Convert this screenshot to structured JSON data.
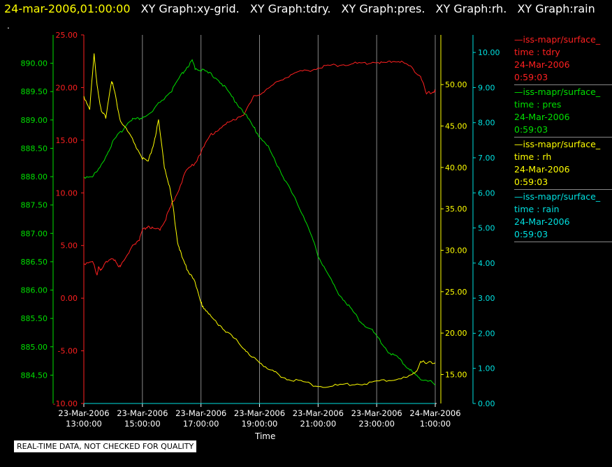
{
  "header": {
    "timestamp": "24-mar-2006,01:00:00",
    "graphs": [
      "XY Graph:xy-grid.",
      "XY Graph:tdry.",
      "XY Graph:pres.",
      "XY Graph:rh.",
      "XY Graph:rain"
    ],
    "dot": "."
  },
  "footer": {
    "disclaimer": "REAL-TIME DATA, NOT CHECKED FOR QUALITY"
  },
  "legend": [
    {
      "line1": "—iss-mapr/surface_",
      "line2": "time : tdry",
      "line3": "24-Mar-2006",
      "line4": "0:59:03",
      "color": "#ff2020"
    },
    {
      "line1": "—iss-mapr/surface_",
      "line2": "time : pres",
      "line3": "24-Mar-2006",
      "line4": "0:59:03",
      "color": "#00e000"
    },
    {
      "line1": "—iss-mapr/surface_",
      "line2": "time : rh",
      "line3": "24-Mar-2006",
      "line4": "0:59:03",
      "color": "#ffff00"
    },
    {
      "line1": "—iss-mapr/surface_",
      "line2": "time : rain",
      "line3": "24-Mar-2006",
      "line4": "0:59:03",
      "color": "#00e0e0"
    }
  ],
  "chart_data": {
    "type": "line",
    "xlabel": "Time",
    "x_ticks": [
      {
        "h": 0,
        "date": "23-Mar-2006",
        "time": "13:00:00"
      },
      {
        "h": 2,
        "date": "23-Mar-2006",
        "time": "15:00:00"
      },
      {
        "h": 4,
        "date": "23-Mar-2006",
        "time": "17:00:00"
      },
      {
        "h": 6,
        "date": "23-Mar-2006",
        "time": "19:00:00"
      },
      {
        "h": 8,
        "date": "23-Mar-2006",
        "time": "21:00:00"
      },
      {
        "h": 10,
        "date": "23-Mar-2006",
        "time": "23:00:00"
      },
      {
        "h": 12,
        "date": "24-Mar-2006",
        "time": "1:00:00"
      }
    ],
    "axes": {
      "pres": {
        "color": "#00e000",
        "range": [
          884.0,
          890.5
        ],
        "ticks": [
          "884.50",
          "885.00",
          "885.50",
          "886.00",
          "886.50",
          "887.00",
          "887.50",
          "888.00",
          "888.50",
          "889.00",
          "889.50",
          "890.00"
        ]
      },
      "tdry": {
        "color": "#ff2020",
        "range": [
          -10.0,
          25.0
        ],
        "ticks": [
          "-10.00",
          "-5.00",
          "0.00",
          "5.00",
          "10.00",
          "15.00",
          "20.00",
          "25.00"
        ]
      },
      "rh": {
        "color": "#ffff00",
        "range": [
          11.5,
          56.0
        ],
        "ticks": [
          "15.00",
          "20.00",
          "25.00",
          "30.00",
          "35.00",
          "40.00",
          "45.00",
          "50.00"
        ]
      },
      "rain": {
        "color": "#00e0e0",
        "range": [
          0.0,
          10.5
        ],
        "ticks": [
          "0.00",
          "1.00",
          "2.00",
          "3.00",
          "4.00",
          "5.00",
          "6.00",
          "7.00",
          "8.00",
          "9.00",
          "10.00"
        ]
      }
    },
    "series": [
      {
        "name": "tdry",
        "axis": "tdry",
        "color": "#ff2020",
        "x": [
          0,
          0.3,
          0.45,
          0.5,
          0.6,
          0.8,
          1.0,
          1.2,
          1.3,
          1.5,
          1.7,
          1.9,
          2.0,
          2.2,
          2.4,
          2.6,
          2.8,
          3.0,
          3.2,
          3.5,
          3.8,
          4.0,
          4.3,
          4.6,
          4.9,
          5.2,
          5.5,
          5.8,
          6.1,
          6.4,
          6.8,
          7.2,
          7.6,
          8.0,
          8.4,
          8.8,
          9.2,
          9.6,
          10.0,
          10.3,
          10.6,
          10.9,
          11.2,
          11.5,
          11.7,
          11.9,
          12.0
        ],
        "y": [
          3.2,
          3.5,
          2.0,
          3.0,
          2.5,
          3.5,
          3.8,
          2.8,
          3.3,
          4.0,
          5.0,
          5.5,
          6.3,
          6.8,
          6.4,
          6.5,
          7.5,
          8.8,
          10.0,
          12.0,
          12.8,
          13.8,
          15.3,
          16.0,
          16.5,
          17.0,
          17.5,
          19.0,
          19.5,
          20.0,
          20.8,
          21.3,
          21.5,
          21.8,
          22.0,
          22.1,
          22.2,
          22.2,
          22.4,
          22.2,
          22.5,
          22.3,
          21.8,
          21.0,
          19.3,
          19.5,
          19.6
        ]
      },
      {
        "name": "pres",
        "axis": "pres",
        "color": "#00e000",
        "x": [
          0,
          0.3,
          0.5,
          0.8,
          1.0,
          1.3,
          1.6,
          1.8,
          2.0,
          2.3,
          2.6,
          3.0,
          3.3,
          3.5,
          3.7,
          3.8,
          4.0,
          4.3,
          4.6,
          4.9,
          5.2,
          5.5,
          5.8,
          6.0,
          6.3,
          6.6,
          6.9,
          7.2,
          7.5,
          7.8,
          8.0,
          8.3,
          8.6,
          8.9,
          9.2,
          9.5,
          9.8,
          10.1,
          10.4,
          10.7,
          11.0,
          11.2,
          11.4,
          11.7,
          12.0
        ],
        "y": [
          887.98,
          888.0,
          888.1,
          888.4,
          888.6,
          888.8,
          889.0,
          889.0,
          889.03,
          889.1,
          889.3,
          889.5,
          889.75,
          889.9,
          890.02,
          889.9,
          889.87,
          889.8,
          889.7,
          889.5,
          889.3,
          889.1,
          888.85,
          888.7,
          888.5,
          888.2,
          887.9,
          887.6,
          887.3,
          886.9,
          886.6,
          886.3,
          886.0,
          885.8,
          885.6,
          885.4,
          885.3,
          885.1,
          884.9,
          884.8,
          884.65,
          884.55,
          884.45,
          884.4,
          884.32
        ]
      },
      {
        "name": "rh",
        "axis": "rh",
        "color": "#ffff00",
        "x": [
          0,
          0.2,
          0.35,
          0.45,
          0.6,
          0.75,
          0.95,
          1.05,
          1.25,
          1.45,
          1.7,
          2.0,
          2.2,
          2.4,
          2.55,
          2.75,
          2.9,
          3.05,
          3.2,
          3.35,
          3.55,
          3.75,
          4.0,
          4.1,
          4.3,
          4.6,
          4.9,
          5.2,
          5.5,
          5.7,
          6.0,
          6.3,
          6.6,
          7.0,
          7.5,
          8.0,
          8.5,
          9.0,
          9.5,
          10.0,
          10.5,
          11.0,
          11.3,
          11.5,
          11.7,
          12.0
        ],
        "y": [
          48.5,
          47.0,
          53.5,
          50.0,
          46.5,
          46.0,
          50.5,
          49.0,
          45.5,
          44.5,
          43.0,
          41.0,
          40.5,
          43.0,
          45.5,
          40.0,
          38.0,
          35.0,
          31.0,
          29.0,
          27.5,
          26.5,
          23.5,
          23.0,
          22.0,
          21.0,
          20.0,
          19.0,
          18.0,
          17.0,
          16.5,
          15.5,
          15.0,
          14.3,
          14.0,
          13.5,
          13.5,
          13.7,
          13.8,
          14.0,
          14.3,
          14.5,
          15.0,
          16.5,
          16.2,
          16.4
        ]
      },
      {
        "name": "rain",
        "axis": "rain",
        "color": "#00e0e0",
        "x": [
          0,
          12.0
        ],
        "y": [
          0.0,
          0.0
        ]
      }
    ]
  }
}
